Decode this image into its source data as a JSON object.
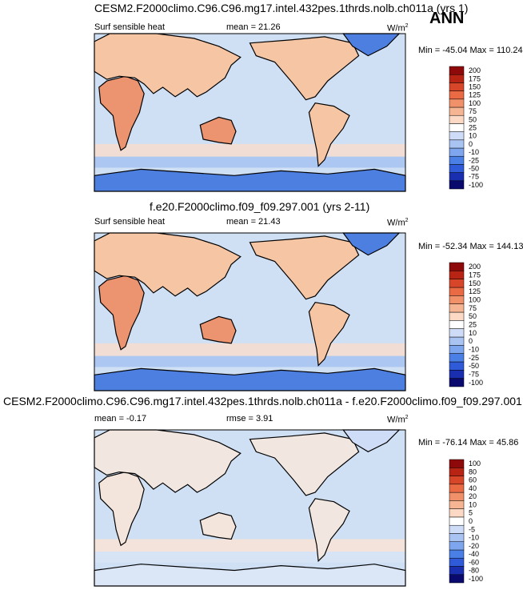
{
  "season": "ANN",
  "panels": [
    {
      "title": "CESM2.F2000climo.C96.C96.mg17.intel.432pes.1thrds.nolb.ch011a (yrs 1)",
      "variable": "Surf sensible heat",
      "stat1": "mean =  21.26",
      "stat2": "",
      "units": "W/m",
      "units_sup": "2",
      "minmax": "Min = -45.04 Max = 110.24",
      "levels": [
        "-100",
        "-75",
        "-50",
        "-25",
        "-10",
        "0",
        "10",
        "25",
        "50",
        "75",
        "100",
        "125",
        "150",
        "175",
        "200"
      ]
    },
    {
      "title": "f.e20.F2000climo.f09_f09.297.001 (yrs 2-11)",
      "variable": "Surf sensible heat",
      "stat1": "mean =  21.43",
      "stat2": "",
      "units": "W/m",
      "units_sup": "2",
      "minmax": "Min = -52.34 Max = 144.13",
      "levels": [
        "-100",
        "-75",
        "-50",
        "-25",
        "-10",
        "0",
        "10",
        "25",
        "50",
        "75",
        "100",
        "125",
        "150",
        "175",
        "200"
      ]
    },
    {
      "title": "CESM2.F2000climo.C96.C96.mg17.intel.432pes.1thrds.nolb.ch011a - f.e20.F2000climo.f09_f09.297.001",
      "variable": "",
      "stat1": "mean =  -0.17",
      "stat2": "rmse =  3.91",
      "units": "W/m",
      "units_sup": "2",
      "minmax": "Min = -76.14 Max =  45.86",
      "levels": [
        "-100",
        "-80",
        "-60",
        "-40",
        "-20",
        "-10",
        "-5",
        "0",
        "5",
        "10",
        "20",
        "40",
        "60",
        "80",
        "100"
      ]
    }
  ],
  "colors": {
    "cbar": [
      "#0a0a6e",
      "#1a2fb0",
      "#2f5bd8",
      "#4a7fe6",
      "#7ea6ee",
      "#a9c4f3",
      "#cfdcf7",
      "#ffffff",
      "#fbd9c4",
      "#f6b592",
      "#f1916a",
      "#ea6a44",
      "#d8462a",
      "#b82414",
      "#8e0a0a"
    ],
    "land_warm": "#f6c6a4",
    "land_hot": "#ec9470",
    "ocean": "#cfe0f5",
    "ice": "#4d7fe0"
  }
}
